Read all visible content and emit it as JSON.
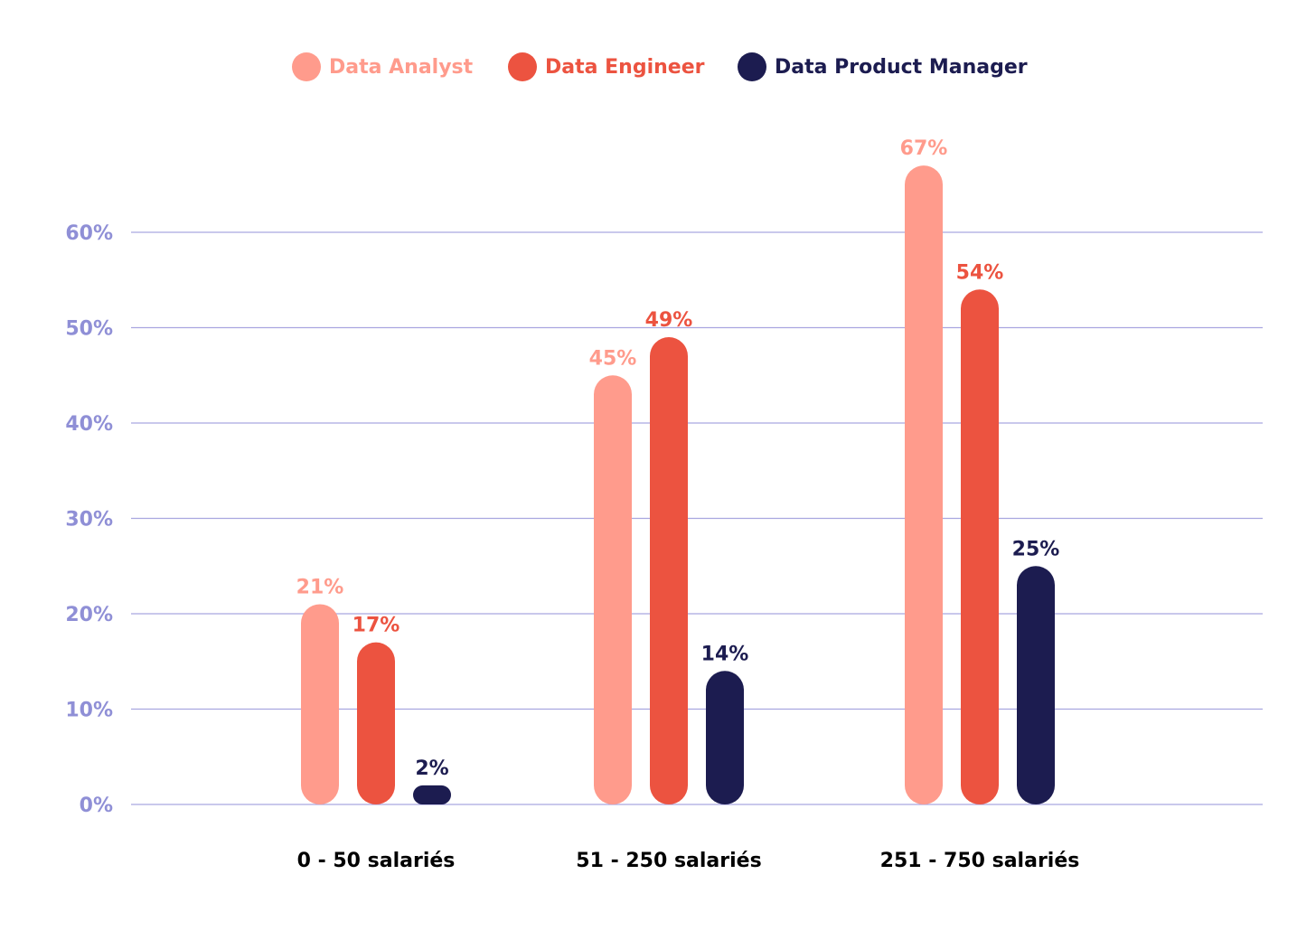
{
  "chart_data": {
    "type": "bar",
    "categories": [
      "0 - 50 salariés",
      "51 - 250 salariés",
      "251 - 750 salariés"
    ],
    "series": [
      {
        "name": "Data Analyst",
        "color": "#ff9b8c",
        "values": [
          21,
          45,
          67
        ],
        "value_labels": [
          "21%",
          "45%",
          "67%"
        ]
      },
      {
        "name": "Data Engineer",
        "color": "#ec5340",
        "values": [
          17,
          49,
          54
        ],
        "value_labels": [
          "17%",
          "49%",
          "54%"
        ]
      },
      {
        "name": "Data Product Manager",
        "color": "#1c1c50",
        "values": [
          2,
          14,
          25
        ],
        "value_labels": [
          "2%",
          "14%",
          "25%"
        ]
      }
    ],
    "ylim": [
      0,
      70
    ],
    "yticks": [
      {
        "value": 0,
        "label": "0%"
      },
      {
        "value": 10,
        "label": "10%"
      },
      {
        "value": 20,
        "label": "20%"
      },
      {
        "value": 30,
        "label": "30%"
      },
      {
        "value": 40,
        "label": "40%"
      },
      {
        "value": 50,
        "label": "50%"
      },
      {
        "value": 60,
        "label": "60%"
      }
    ],
    "grid": true,
    "legend": "top"
  }
}
